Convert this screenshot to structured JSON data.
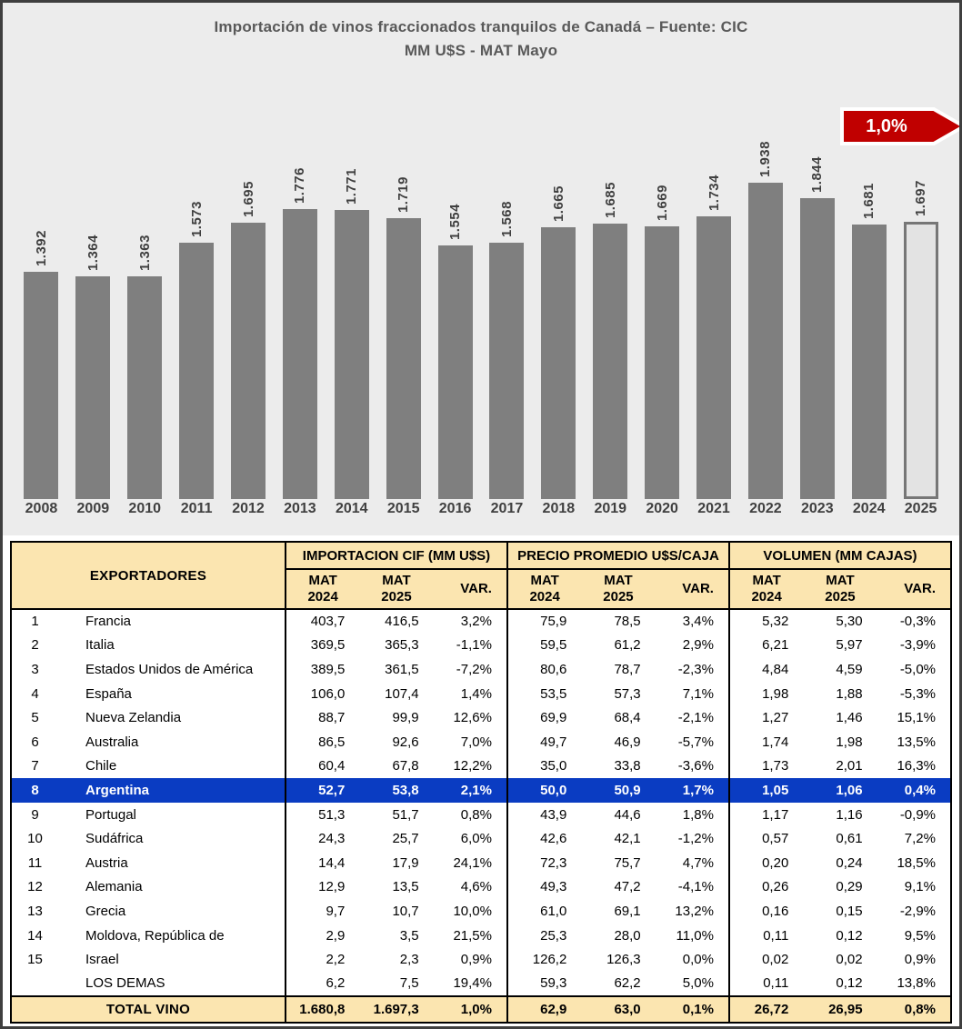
{
  "colors": {
    "frame_border": "#3f3f3f",
    "chart_bg": "#ececec",
    "bar_gray": "#7f7f7f",
    "forecast_fill": "#e3e3e3",
    "badge_red": "#c00000",
    "header_cream": "#fbe5b0",
    "highlight_blue": "#0a3cc2",
    "title_gray": "#595959"
  },
  "chart_data": {
    "type": "bar",
    "title": "Importación de vinos fraccionados tranquilos de Canadá – Fuente: CIC",
    "subtitle": "MM U$S - MAT Mayo",
    "annotation": "1,0%",
    "categories": [
      "2008",
      "2009",
      "2010",
      "2011",
      "2012",
      "2013",
      "2014",
      "2015",
      "2016",
      "2017",
      "2018",
      "2019",
      "2020",
      "2021",
      "2022",
      "2023",
      "2024",
      "2025"
    ],
    "values": [
      1392,
      1364,
      1363,
      1573,
      1695,
      1776,
      1771,
      1719,
      1554,
      1568,
      1665,
      1685,
      1669,
      1734,
      1938,
      1844,
      1681,
      1697
    ],
    "value_labels": [
      "1.392",
      "1.364",
      "1.363",
      "1.573",
      "1.695",
      "1.776",
      "1.771",
      "1.719",
      "1.554",
      "1.568",
      "1.665",
      "1.685",
      "1.669",
      "1.734",
      "1.938",
      "1.844",
      "1.681",
      "1.697"
    ],
    "ylim": [
      0,
      1938
    ],
    "highlight_last": true,
    "grid": false,
    "legend": false
  },
  "table": {
    "exportadores_label": "EXPORTADORES",
    "groups": [
      "IMPORTACION CIF (MM U$S)",
      "PRECIO PROMEDIO U$S/CAJA",
      "VOLUMEN (MM CAJAS)"
    ],
    "sub": [
      "MAT\n2024",
      "MAT\n2025",
      "VAR."
    ],
    "rows": [
      {
        "rank": "1",
        "name": "Francia",
        "highlight": false,
        "cif": [
          "403,7",
          "416,5",
          "3,2%"
        ],
        "precio": [
          "75,9",
          "78,5",
          "3,4%"
        ],
        "vol": [
          "5,32",
          "5,30",
          "-0,3%"
        ]
      },
      {
        "rank": "2",
        "name": "Italia",
        "highlight": false,
        "cif": [
          "369,5",
          "365,3",
          "-1,1%"
        ],
        "precio": [
          "59,5",
          "61,2",
          "2,9%"
        ],
        "vol": [
          "6,21",
          "5,97",
          "-3,9%"
        ]
      },
      {
        "rank": "3",
        "name": "Estados Unidos de América",
        "highlight": false,
        "cif": [
          "389,5",
          "361,5",
          "-7,2%"
        ],
        "precio": [
          "80,6",
          "78,7",
          "-2,3%"
        ],
        "vol": [
          "4,84",
          "4,59",
          "-5,0%"
        ]
      },
      {
        "rank": "4",
        "name": "España",
        "highlight": false,
        "cif": [
          "106,0",
          "107,4",
          "1,4%"
        ],
        "precio": [
          "53,5",
          "57,3",
          "7,1%"
        ],
        "vol": [
          "1,98",
          "1,88",
          "-5,3%"
        ]
      },
      {
        "rank": "5",
        "name": "Nueva Zelandia",
        "highlight": false,
        "cif": [
          "88,7",
          "99,9",
          "12,6%"
        ],
        "precio": [
          "69,9",
          "68,4",
          "-2,1%"
        ],
        "vol": [
          "1,27",
          "1,46",
          "15,1%"
        ]
      },
      {
        "rank": "6",
        "name": "Australia",
        "highlight": false,
        "cif": [
          "86,5",
          "92,6",
          "7,0%"
        ],
        "precio": [
          "49,7",
          "46,9",
          "-5,7%"
        ],
        "vol": [
          "1,74",
          "1,98",
          "13,5%"
        ]
      },
      {
        "rank": "7",
        "name": "Chile",
        "highlight": false,
        "cif": [
          "60,4",
          "67,8",
          "12,2%"
        ],
        "precio": [
          "35,0",
          "33,8",
          "-3,6%"
        ],
        "vol": [
          "1,73",
          "2,01",
          "16,3%"
        ]
      },
      {
        "rank": "8",
        "name": "Argentina",
        "highlight": true,
        "cif": [
          "52,7",
          "53,8",
          "2,1%"
        ],
        "precio": [
          "50,0",
          "50,9",
          "1,7%"
        ],
        "vol": [
          "1,05",
          "1,06",
          "0,4%"
        ]
      },
      {
        "rank": "9",
        "name": "Portugal",
        "highlight": false,
        "cif": [
          "51,3",
          "51,7",
          "0,8%"
        ],
        "precio": [
          "43,9",
          "44,6",
          "1,8%"
        ],
        "vol": [
          "1,17",
          "1,16",
          "-0,9%"
        ]
      },
      {
        "rank": "10",
        "name": "Sudáfrica",
        "highlight": false,
        "cif": [
          "24,3",
          "25,7",
          "6,0%"
        ],
        "precio": [
          "42,6",
          "42,1",
          "-1,2%"
        ],
        "vol": [
          "0,57",
          "0,61",
          "7,2%"
        ]
      },
      {
        "rank": "11",
        "name": "Austria",
        "highlight": false,
        "cif": [
          "14,4",
          "17,9",
          "24,1%"
        ],
        "precio": [
          "72,3",
          "75,7",
          "4,7%"
        ],
        "vol": [
          "0,20",
          "0,24",
          "18,5%"
        ]
      },
      {
        "rank": "12",
        "name": "Alemania",
        "highlight": false,
        "cif": [
          "12,9",
          "13,5",
          "4,6%"
        ],
        "precio": [
          "49,3",
          "47,2",
          "-4,1%"
        ],
        "vol": [
          "0,26",
          "0,29",
          "9,1%"
        ]
      },
      {
        "rank": "13",
        "name": "Grecia",
        "highlight": false,
        "cif": [
          "9,7",
          "10,7",
          "10,0%"
        ],
        "precio": [
          "61,0",
          "69,1",
          "13,2%"
        ],
        "vol": [
          "0,16",
          "0,15",
          "-2,9%"
        ]
      },
      {
        "rank": "14",
        "name": "Moldova, República de",
        "highlight": false,
        "cif": [
          "2,9",
          "3,5",
          "21,5%"
        ],
        "precio": [
          "25,3",
          "28,0",
          "11,0%"
        ],
        "vol": [
          "0,11",
          "0,12",
          "9,5%"
        ]
      },
      {
        "rank": "15",
        "name": "Israel",
        "highlight": false,
        "cif": [
          "2,2",
          "2,3",
          "0,9%"
        ],
        "precio": [
          "126,2",
          "126,3",
          "0,0%"
        ],
        "vol": [
          "0,02",
          "0,02",
          "0,9%"
        ]
      },
      {
        "rank": "",
        "name": "LOS DEMAS",
        "highlight": false,
        "cif": [
          "6,2",
          "7,5",
          "19,4%"
        ],
        "precio": [
          "59,3",
          "62,2",
          "5,0%"
        ],
        "vol": [
          "0,11",
          "0,12",
          "13,8%"
        ]
      }
    ],
    "total": {
      "name": "TOTAL VINO",
      "cif": [
        "1.680,8",
        "1.697,3",
        "1,0%"
      ],
      "precio": [
        "62,9",
        "63,0",
        "0,1%"
      ],
      "vol": [
        "26,72",
        "26,95",
        "0,8%"
      ]
    }
  }
}
